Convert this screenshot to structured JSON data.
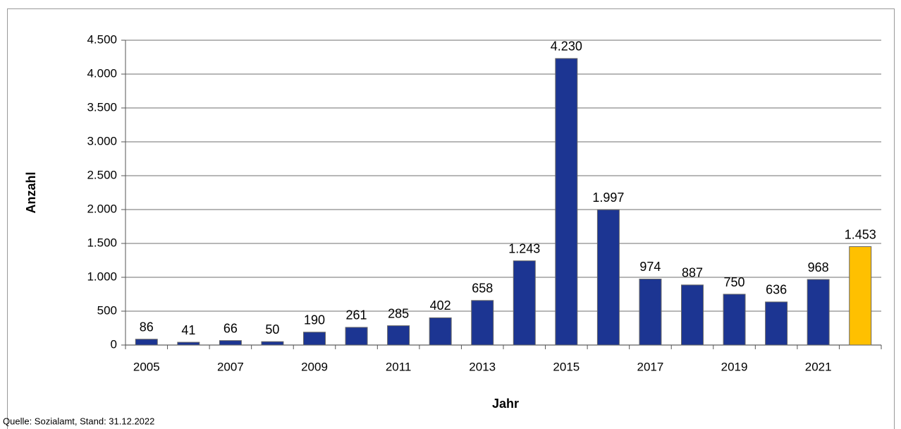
{
  "chart_data": {
    "type": "bar",
    "categories": [
      "2005",
      null,
      "2007",
      null,
      "2009",
      null,
      "2011",
      null,
      "2013",
      null,
      "2015",
      null,
      "2017",
      null,
      "2019",
      null,
      "2021",
      null
    ],
    "values": [
      86,
      41,
      66,
      50,
      190,
      261,
      285,
      402,
      658,
      1243,
      4230,
      1997,
      974,
      887,
      750,
      636,
      968,
      1453
    ],
    "value_labels": [
      "86",
      "41",
      "66",
      "50",
      "190",
      "261",
      "285",
      "402",
      "658",
      "1.243",
      "4.230",
      "1.997",
      "974",
      "887",
      "750",
      "636",
      "968",
      "1.453"
    ],
    "colors": [
      "#1c3592",
      "#1c3592",
      "#1c3592",
      "#1c3592",
      "#1c3592",
      "#1c3592",
      "#1c3592",
      "#1c3592",
      "#1c3592",
      "#1c3592",
      "#1c3592",
      "#1c3592",
      "#1c3592",
      "#1c3592",
      "#1c3592",
      "#1c3592",
      "#1c3592",
      "#ffc000"
    ],
    "ylim": [
      0,
      4500
    ],
    "yticks": [
      0,
      500,
      {
        "value": 1000,
        "label": "1.000"
      },
      {
        "value": 1500,
        "label": "1.500"
      },
      {
        "value": 2000,
        "label": "2.000"
      },
      {
        "value": 2500,
        "label": "2.500"
      },
      {
        "value": 3000,
        "label": "3.000"
      },
      {
        "value": 3500,
        "label": "3.500"
      },
      {
        "value": 4000,
        "label": "4.000"
      },
      {
        "value": 4500,
        "label": "4.500"
      }
    ],
    "grid": true,
    "y_label": "Anzahl",
    "x_label": "Jahr",
    "source": "Quelle: Sozialamt, Stand: 31.12.2022"
  }
}
